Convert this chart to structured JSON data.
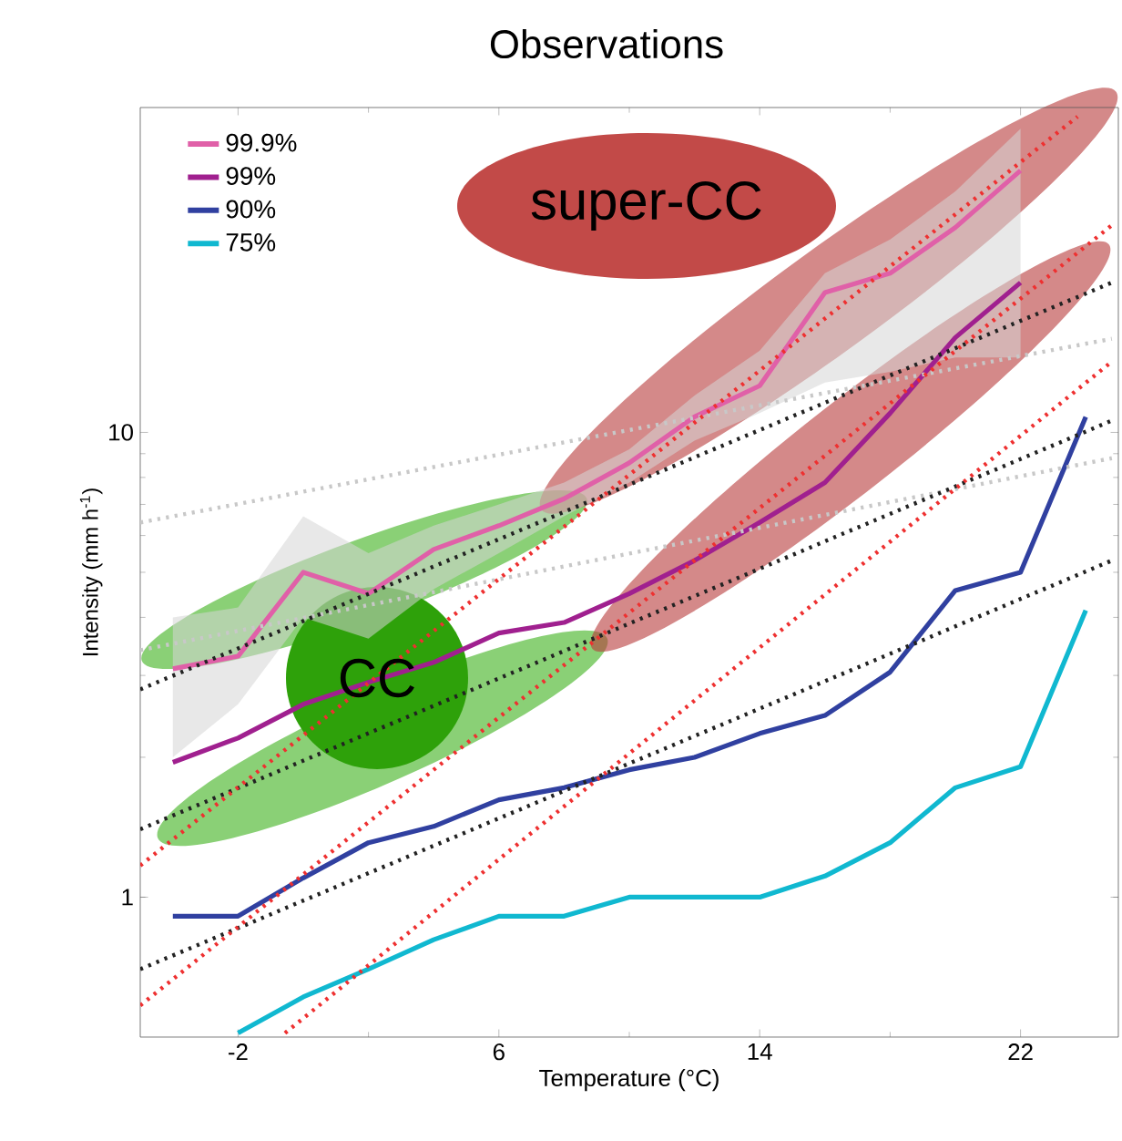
{
  "chart_data": {
    "type": "line",
    "title": "Observations",
    "xlabel": "Temperature (°C)",
    "ylabel": "Intensity (mm h$^{-1}$)",
    "annotations": [
      "super-CC",
      "CC"
    ],
    "xlim": [
      -5,
      25
    ],
    "ylim": [
      0.5,
      50
    ],
    "xticks": [
      -2,
      6,
      14,
      22
    ],
    "yticks": [
      1,
      10
    ],
    "log": "y",
    "legend": "top left",
    "series": [
      {
        "name": "99.9%",
        "color": "#e060a8",
        "x": [
          -4,
          -2,
          0,
          2,
          4,
          6,
          8,
          10,
          12,
          14,
          16,
          18,
          20,
          22
        ],
        "values": [
          3.1,
          3.3,
          5.0,
          4.5,
          5.6,
          6.3,
          7.2,
          8.6,
          10.8,
          12.6,
          20,
          22,
          27.6,
          36.6
        ],
        "lower": [
          2.0,
          2.6,
          4.0,
          3.6,
          4.6,
          5.5,
          6.6,
          7.8,
          9.6,
          11.0,
          12.8,
          13.5,
          14.5,
          14.5
        ],
        "upper": [
          4.0,
          4.2,
          6.6,
          5.5,
          6.3,
          7.0,
          7.8,
          9.2,
          12.0,
          15.0,
          22,
          26,
          33,
          45
        ]
      },
      {
        "name": "99%",
        "color": "#a0208f",
        "x": [
          -4,
          -2,
          0,
          2,
          4,
          6,
          8,
          10,
          12,
          14,
          16,
          18,
          20,
          22
        ],
        "values": [
          1.95,
          2.2,
          2.6,
          2.9,
          3.2,
          3.7,
          3.9,
          4.5,
          5.3,
          6.4,
          7.8,
          11,
          16,
          21
        ]
      },
      {
        "name": "90%",
        "color": "#3040a0",
        "x": [
          -4,
          -2,
          0,
          2,
          4,
          6,
          8,
          10,
          12,
          14,
          16,
          18,
          20,
          22,
          24
        ],
        "values": [
          0.91,
          0.91,
          1.1,
          1.31,
          1.42,
          1.62,
          1.72,
          1.88,
          2.0,
          2.25,
          2.46,
          3.05,
          4.57,
          5.0,
          10.8
        ]
      },
      {
        "name": "75%",
        "color": "#10b8d0",
        "x": [
          -2,
          0,
          2,
          4,
          6,
          8,
          10,
          12,
          14,
          16,
          18,
          20,
          22,
          24
        ],
        "values": [
          0.51,
          0.61,
          0.7,
          0.81,
          0.91,
          0.91,
          1.0,
          1.0,
          1.0,
          1.11,
          1.31,
          1.72,
          1.91,
          4.14
        ]
      },
      {
        "color": "#c8c8c8",
        "line_style": "dotted",
        "x": [
          -5,
          24.8
        ],
        "values": [
          6.4,
          15.9
        ]
      },
      {
        "color": "#c8c8c8",
        "line_style": "dotted",
        "x": [
          -5,
          24.8
        ],
        "values": [
          3.4,
          8.8
        ]
      },
      {
        "color": "#222222",
        "line_style": "dotted",
        "x": [
          -5,
          24.8
        ],
        "values": [
          2.8,
          21
        ]
      },
      {
        "color": "#222222",
        "line_style": "dotted",
        "x": [
          -5,
          24.8
        ],
        "values": [
          1.4,
          10.6
        ]
      },
      {
        "color": "#222222",
        "line_style": "dotted",
        "x": [
          -5,
          24.8
        ],
        "values": [
          0.7,
          5.3
        ]
      },
      {
        "color": "#ee3030",
        "line_style": "dotted",
        "x": [
          -5,
          23.75
        ],
        "values": [
          1.17,
          47.8
        ]
      },
      {
        "color": "#ee3030",
        "line_style": "dotted",
        "x": [
          -5,
          24.8
        ],
        "values": [
          0.585,
          27.9
        ]
      },
      {
        "color": "#ee3030",
        "line_style": "dotted",
        "x": [
          -0.56,
          24.8
        ],
        "values": [
          0.51,
          14.2
        ]
      }
    ]
  }
}
